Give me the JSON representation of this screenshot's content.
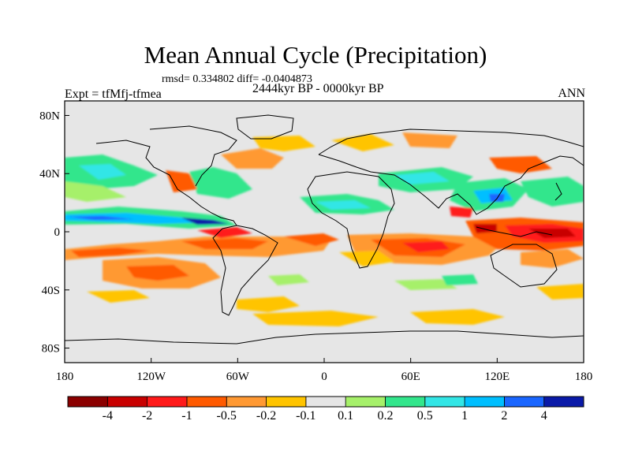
{
  "title": "Mean Annual Cycle (Precipitation)",
  "stats_text": "rmsd= 0.334802 diff= -0.0404873",
  "period_text": "2444kyr BP - 0000kyr BP",
  "experiment_text": "Expt = tfMfj-tfmea",
  "season_text": "ANN",
  "map": {
    "lat_ticks": [
      {
        "value": 80,
        "label": "80N"
      },
      {
        "value": 40,
        "label": "40N"
      },
      {
        "value": 0,
        "label": "0"
      },
      {
        "value": -40,
        "label": "40S"
      },
      {
        "value": -80,
        "label": "80S"
      }
    ],
    "lon_ticks": [
      {
        "value": -180,
        "label": "180"
      },
      {
        "value": -120,
        "label": "120W"
      },
      {
        "value": -60,
        "label": "60W"
      },
      {
        "value": 0,
        "label": "0"
      },
      {
        "value": 60,
        "label": "60E"
      },
      {
        "value": 120,
        "label": "120E"
      },
      {
        "value": 180,
        "label": "180"
      }
    ],
    "lat_range": [
      -90,
      90
    ],
    "lon_range": [
      -180,
      180
    ]
  },
  "colorbar": {
    "colors": [
      "#8b0000",
      "#c80000",
      "#ff1a1a",
      "#ff5a00",
      "#ff9933",
      "#ffc400",
      "#e6e6e6",
      "#a6f06a",
      "#33e68c",
      "#33e6e6",
      "#00bfff",
      "#1a66ff",
      "#0a1aa8"
    ],
    "labels": [
      "-4",
      "-2",
      "-1",
      "-0.5",
      "-0.2",
      "-0.1",
      "0.1",
      "0.2",
      "0.5",
      "1",
      "2",
      "4"
    ]
  }
}
